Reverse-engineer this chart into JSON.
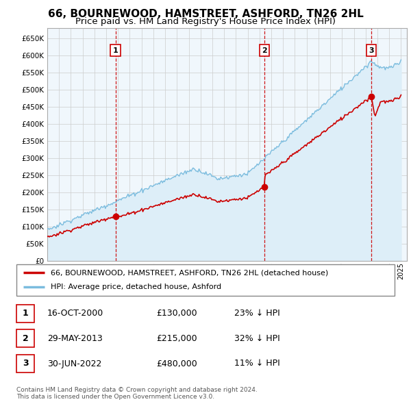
{
  "title": "66, BOURNEWOOD, HAMSTREET, ASHFORD, TN26 2HL",
  "subtitle": "Price paid vs. HM Land Registry's House Price Index (HPI)",
  "ylabel_ticks": [
    "£0",
    "£50K",
    "£100K",
    "£150K",
    "£200K",
    "£250K",
    "£300K",
    "£350K",
    "£400K",
    "£450K",
    "£500K",
    "£550K",
    "£600K",
    "£650K"
  ],
  "ytick_vals": [
    0,
    50000,
    100000,
    150000,
    200000,
    250000,
    300000,
    350000,
    400000,
    450000,
    500000,
    550000,
    600000,
    650000
  ],
  "ylim": [
    0,
    680000
  ],
  "xlim_start": 1995.0,
  "xlim_end": 2025.5,
  "hpi_color": "#7bbcde",
  "hpi_fill_color": "#ddeef8",
  "price_color": "#cc0000",
  "sale_marker_color": "#cc0000",
  "vline_color": "#cc0000",
  "background_color": "#ffffff",
  "grid_color": "#cccccc",
  "title_fontsize": 11,
  "subtitle_fontsize": 9.5,
  "legend_label_property": "66, BOURNEWOOD, HAMSTREET, ASHFORD, TN26 2HL (detached house)",
  "legend_label_hpi": "HPI: Average price, detached house, Ashford",
  "sales": [
    {
      "num": 1,
      "date_x": 2000.79,
      "price": 130000,
      "label": "1",
      "pct": "23%",
      "dir": "↓",
      "date_str": "16-OCT-2000"
    },
    {
      "num": 2,
      "date_x": 2013.41,
      "price": 215000,
      "label": "2",
      "pct": "32%",
      "dir": "↓",
      "date_str": "29-MAY-2013"
    },
    {
      "num": 3,
      "date_x": 2022.49,
      "price": 480000,
      "label": "3",
      "pct": "11%",
      "dir": "↓",
      "date_str": "30-JUN-2022"
    }
  ],
  "footnote": "Contains HM Land Registry data © Crown copyright and database right 2024.\nThis data is licensed under the Open Government Licence v3.0.",
  "table_rows": [
    {
      "num": "1",
      "date": "16-OCT-2000",
      "price": "£130,000",
      "pct": "23% ↓ HPI"
    },
    {
      "num": "2",
      "date": "29-MAY-2013",
      "price": "£215,000",
      "pct": "32% ↓ HPI"
    },
    {
      "num": "3",
      "date": "30-JUN-2022",
      "price": "£480,000",
      "pct": "11% ↓ HPI"
    }
  ]
}
